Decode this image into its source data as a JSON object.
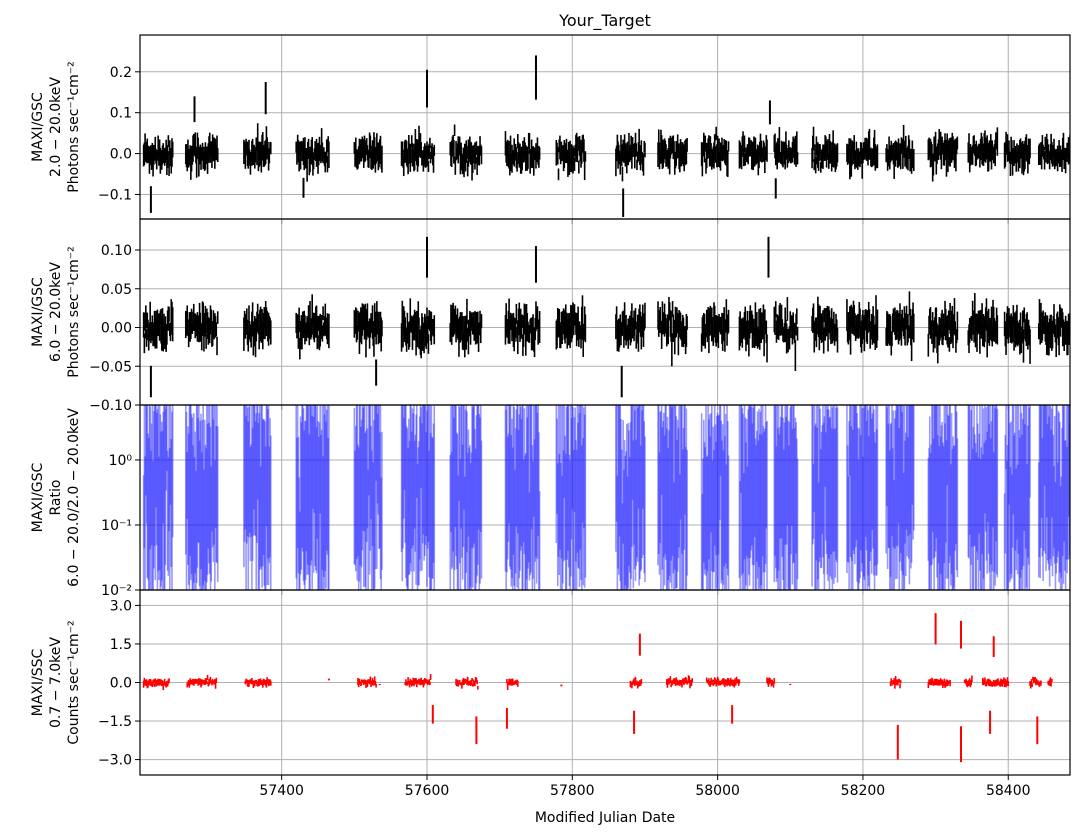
{
  "chart_data": {
    "type": "line",
    "title": "Your_Target",
    "xlabel": "Modified Julian Date",
    "xlim": [
      57205,
      58485
    ],
    "x_ticks": [
      "57400",
      "57600",
      "57800",
      "58000",
      "58200",
      "58400"
    ],
    "x_tick_values": [
      57400,
      57600,
      57800,
      58000,
      58200,
      58400
    ],
    "grid": true,
    "panels": [
      {
        "ylabel_lines": [
          "MAXI/GSC",
          "2.0 − 20.0keV",
          "Photons sec⁻¹cm⁻²"
        ],
        "ylim": [
          -0.16,
          0.29
        ],
        "y_ticks": [
          "−0.1",
          "0.0",
          "0.1",
          "0.2"
        ],
        "y_tick_values": [
          -0.1,
          0.0,
          0.1,
          0.2
        ],
        "scale": "linear",
        "color": "#000000",
        "segments": [
          [
            57210,
            57250
          ],
          [
            57268,
            57312
          ],
          [
            57348,
            57385
          ],
          [
            57420,
            57465
          ],
          [
            57500,
            57538
          ],
          [
            57565,
            57610
          ],
          [
            57632,
            57675
          ],
          [
            57708,
            57755
          ],
          [
            57778,
            57818
          ],
          [
            57860,
            57900
          ],
          [
            57918,
            57958
          ],
          [
            57978,
            58015
          ],
          [
            58030,
            58068
          ],
          [
            58078,
            58110
          ],
          [
            58130,
            58165
          ],
          [
            58178,
            58220
          ],
          [
            58232,
            58270
          ],
          [
            58290,
            58330
          ],
          [
            58345,
            58385
          ],
          [
            58395,
            58430
          ],
          [
            58442,
            58485
          ]
        ],
        "mean": 0.0,
        "scatter": 0.025,
        "spikes": [
          {
            "x": 57220,
            "y": -0.145
          },
          {
            "x": 57280,
            "y": 0.14
          },
          {
            "x": 57378,
            "y": 0.175
          },
          {
            "x": 57430,
            "y": -0.108
          },
          {
            "x": 57600,
            "y": 0.205
          },
          {
            "x": 57750,
            "y": 0.24
          },
          {
            "x": 57870,
            "y": -0.155
          },
          {
            "x": 58080,
            "y": -0.11
          },
          {
            "x": 58072,
            "y": 0.13
          }
        ]
      },
      {
        "ylabel_lines": [
          "MAXI/GSC",
          "6.0 − 20.0keV",
          "Photons sec⁻¹cm⁻²"
        ],
        "ylim": [
          -0.1,
          0.14
        ],
        "y_ticks": [
          "−0.10",
          "−0.05",
          "0.00",
          "0.05",
          "0.10"
        ],
        "y_tick_values": [
          -0.1,
          -0.05,
          0.0,
          0.05,
          0.1
        ],
        "scale": "linear",
        "color": "#000000",
        "segments": [
          [
            57210,
            57250
          ],
          [
            57268,
            57312
          ],
          [
            57348,
            57385
          ],
          [
            57420,
            57465
          ],
          [
            57500,
            57538
          ],
          [
            57565,
            57610
          ],
          [
            57632,
            57675
          ],
          [
            57708,
            57755
          ],
          [
            57778,
            57818
          ],
          [
            57860,
            57900
          ],
          [
            57918,
            57958
          ],
          [
            57978,
            58015
          ],
          [
            58030,
            58068
          ],
          [
            58078,
            58110
          ],
          [
            58130,
            58165
          ],
          [
            58178,
            58220
          ],
          [
            58232,
            58270
          ],
          [
            58290,
            58330
          ],
          [
            58345,
            58385
          ],
          [
            58395,
            58430
          ],
          [
            58442,
            58485
          ]
        ],
        "mean": 0.0,
        "scatter": 0.016,
        "spikes": [
          {
            "x": 57220,
            "y": -0.09
          },
          {
            "x": 57600,
            "y": 0.117
          },
          {
            "x": 57750,
            "y": 0.105
          },
          {
            "x": 58070,
            "y": 0.117
          },
          {
            "x": 57868,
            "y": -0.09
          },
          {
            "x": 57530,
            "y": -0.075
          }
        ]
      },
      {
        "ylabel_lines": [
          "MAXI/GSC",
          "Ratio",
          "6.0 − 20.0/2.0 − 20.0keV"
        ],
        "ylim": [
          0.01,
          7
        ],
        "y_ticks": [
          "10⁻²",
          "10⁻¹",
          "10⁰"
        ],
        "y_tick_values": [
          0.01,
          0.1,
          1
        ],
        "scale": "log",
        "color": "#1a1aff",
        "segments": [
          [
            57210,
            57250
          ],
          [
            57268,
            57312
          ],
          [
            57348,
            57385
          ],
          [
            57420,
            57465
          ],
          [
            57500,
            57538
          ],
          [
            57565,
            57610
          ],
          [
            57632,
            57675
          ],
          [
            57708,
            57755
          ],
          [
            57778,
            57818
          ],
          [
            57860,
            57900
          ],
          [
            57918,
            57958
          ],
          [
            57978,
            58015
          ],
          [
            58030,
            58068
          ],
          [
            58078,
            58110
          ],
          [
            58130,
            58165
          ],
          [
            58178,
            58220
          ],
          [
            58232,
            58270
          ],
          [
            58290,
            58330
          ],
          [
            58345,
            58385
          ],
          [
            58395,
            58430
          ],
          [
            58442,
            58485
          ]
        ]
      },
      {
        "ylabel_lines": [
          "MAXI/SSC",
          "0.7 − 7.0keV",
          "Counts sec⁻¹cm⁻²"
        ],
        "ylim": [
          -3.6,
          3.6
        ],
        "y_ticks": [
          "−3.0",
          "−1.5",
          "0.0",
          "1.5",
          "3.0"
        ],
        "y_tick_values": [
          -3.0,
          -1.5,
          0.0,
          1.5,
          3.0
        ],
        "scale": "linear",
        "color": "#ff0000",
        "segments": [
          [
            57210,
            57245
          ],
          [
            57270,
            57310
          ],
          [
            57350,
            57385
          ],
          [
            57505,
            57530
          ],
          [
            57570,
            57605
          ],
          [
            57640,
            57670
          ],
          [
            57710,
            57725
          ],
          [
            57880,
            57895
          ],
          [
            57930,
            57965
          ],
          [
            57985,
            58030
          ],
          [
            58068,
            58078
          ],
          [
            58238,
            58252
          ],
          [
            58290,
            58320
          ],
          [
            58340,
            58350
          ],
          [
            58365,
            58400
          ],
          [
            58430,
            58445
          ],
          [
            58455,
            58460
          ]
        ],
        "mean": 0.0,
        "scatter": 0.1,
        "spikes": [
          {
            "x": 57465,
            "y": 0.15
          },
          {
            "x": 57535,
            "y": -0.1
          },
          {
            "x": 57608,
            "y": -1.6
          },
          {
            "x": 57668,
            "y": -2.4
          },
          {
            "x": 57710,
            "y": -1.8
          },
          {
            "x": 57785,
            "y": -0.15
          },
          {
            "x": 57885,
            "y": -2.0
          },
          {
            "x": 57893,
            "y": 1.9
          },
          {
            "x": 58020,
            "y": -1.6
          },
          {
            "x": 58248,
            "y": -3.0
          },
          {
            "x": 58300,
            "y": 2.7
          },
          {
            "x": 58335,
            "y": -3.1
          },
          {
            "x": 58335,
            "y": 2.4
          },
          {
            "x": 58380,
            "y": 1.8
          },
          {
            "x": 58375,
            "y": -2.0
          },
          {
            "x": 58440,
            "y": -2.4
          },
          {
            "x": 58100,
            "y": -0.1
          }
        ]
      }
    ]
  }
}
